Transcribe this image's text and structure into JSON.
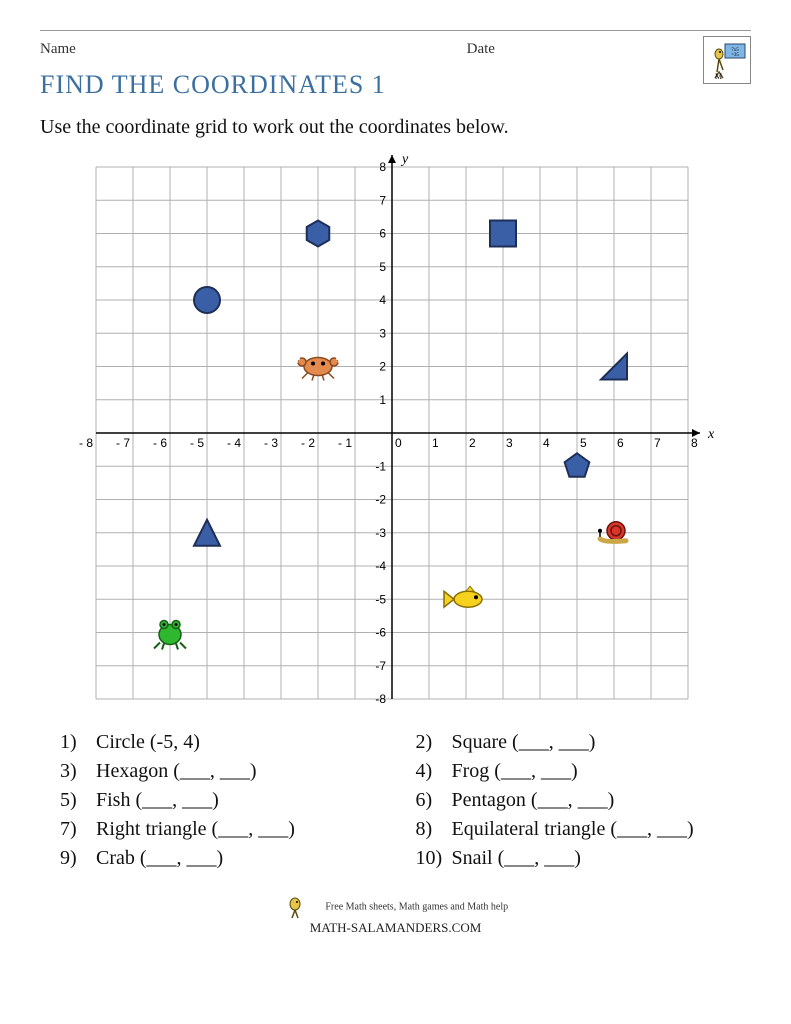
{
  "header": {
    "name_label": "Name",
    "date_label": "Date"
  },
  "title": "FIND THE COORDINATES 1",
  "instruction": "Use the coordinate grid to work out the coordinates below.",
  "grid": {
    "xmin": -8,
    "xmax": 8,
    "ymin": -8,
    "ymax": 8,
    "step": 1,
    "grid_color": "#b0b0b0",
    "axis_color": "#000000",
    "bg_color": "#ffffff",
    "tick_fontsize": 12,
    "axis_label_x": "x",
    "axis_label_y": "y",
    "markers": [
      {
        "kind": "circle",
        "x": -5,
        "y": 4,
        "fill": "#3b5fa7",
        "stroke": "#1e2f57"
      },
      {
        "kind": "hexagon",
        "x": -2,
        "y": 6,
        "fill": "#3b5fa7",
        "stroke": "#1e2f57"
      },
      {
        "kind": "square",
        "x": 3,
        "y": 6,
        "fill": "#3b5fa7",
        "stroke": "#1e2f57"
      },
      {
        "kind": "right-tri",
        "x": 6,
        "y": 2,
        "fill": "#3b5fa7",
        "stroke": "#1e2f57"
      },
      {
        "kind": "pentagon",
        "x": 5,
        "y": -1,
        "fill": "#3b5fa7",
        "stroke": "#1e2f57"
      },
      {
        "kind": "eq-tri",
        "x": -5,
        "y": -3,
        "fill": "#3b5fa7",
        "stroke": "#1e2f57"
      },
      {
        "kind": "crab",
        "x": -2,
        "y": 2,
        "fill": "#e38b4f",
        "stroke": "#8a4a1e"
      },
      {
        "kind": "frog",
        "x": -6,
        "y": -6,
        "fill": "#2fb82f",
        "stroke": "#186018"
      },
      {
        "kind": "fish",
        "x": 2,
        "y": -5,
        "fill": "#f6d21f",
        "stroke": "#8a6f00"
      },
      {
        "kind": "snail",
        "x": 6,
        "y": -3,
        "fill": "#d9352b",
        "stroke": "#6a1410"
      }
    ]
  },
  "questions": [
    {
      "n": "1)",
      "text": "Circle (-5, 4)"
    },
    {
      "n": "2)",
      "text": "Square (___, ___)"
    },
    {
      "n": "3)",
      "text": "Hexagon (___, ___)"
    },
    {
      "n": "4)",
      "text": "Frog (___, ___)"
    },
    {
      "n": "5)",
      "text": "Fish (___, ___)"
    },
    {
      "n": "6)",
      "text": "Pentagon (___, ___)"
    },
    {
      "n": "7)",
      "text": "Right triangle (___, ___)"
    },
    {
      "n": "8)",
      "text": "Equilateral triangle (___, ___)"
    },
    {
      "n": "9)",
      "text": "Crab (___, ___)"
    },
    {
      "n": "10)",
      "text": "Snail (___, ___)"
    }
  ],
  "footer": {
    "tagline": "Free Math sheets, Math games and Math help",
    "brand": "MATH-SALAMANDERS.COM"
  }
}
